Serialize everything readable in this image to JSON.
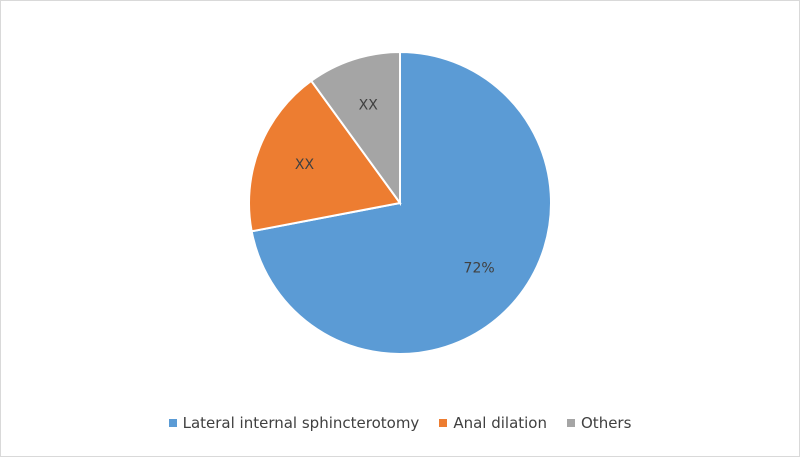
{
  "chart_data": {
    "type": "pie",
    "title": "",
    "categories": [
      "Lateral internal sphincterotomy",
      "Anal dilation",
      "Others"
    ],
    "values": [
      72,
      18,
      10
    ],
    "data_labels": [
      "72%",
      "XX",
      "XX"
    ],
    "colors": [
      "#5b9bd5",
      "#ed7d31",
      "#a5a5a5"
    ],
    "start_angle_deg": 0,
    "direction": "clockwise",
    "legend": {
      "placement": "bottom",
      "items": [
        {
          "label": "Lateral internal sphincterotomy",
          "color": "#5b9bd5"
        },
        {
          "label": "Anal dilation",
          "color": "#ed7d31"
        },
        {
          "label": "Others",
          "color": "#a5a5a5"
        }
      ]
    }
  }
}
